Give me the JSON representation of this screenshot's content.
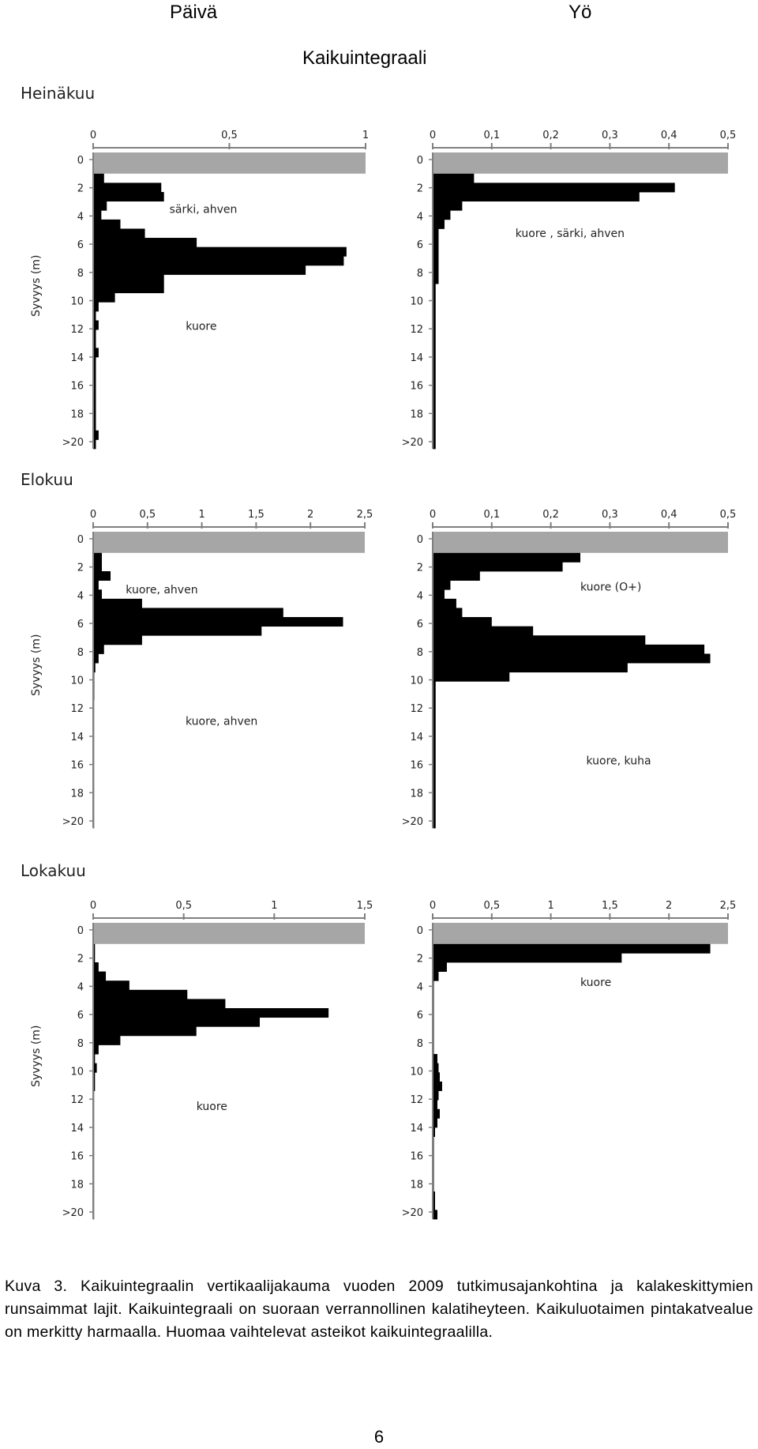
{
  "header": {
    "day": "Päivä",
    "night": "Yö",
    "title": "Kaikuintegraali"
  },
  "months": [
    "Heinäkuu",
    "Elokuu",
    "Lokakuu"
  ],
  "ylabel": "Syvyys (m)",
  "depth_labels": [
    "0",
    "2",
    "4",
    "6",
    "8",
    "10",
    "12",
    "14",
    "16",
    "18",
    ">20"
  ],
  "colors": {
    "surface": "#a6a6a6",
    "bars": "#000000",
    "axis": "#7f7f7f"
  },
  "chart_data": [
    {
      "type": "bar",
      "orientation": "horizontal",
      "month": "Heinäkuu",
      "column": "Päivä",
      "xlim": [
        0,
        1
      ],
      "ticks": [
        0,
        0.5,
        1
      ],
      "tick_labels": [
        "0",
        "0,5",
        "1"
      ],
      "annotations": [
        "särki, ahven",
        "kuore"
      ],
      "surface_depth": [
        0,
        1.5
      ],
      "depth_max": 21,
      "values": [
        0.04,
        0.25,
        0.26,
        0.05,
        0.03,
        0.1,
        0.19,
        0.38,
        0.93,
        0.92,
        0.78,
        0.26,
        0.26,
        0.08,
        0.02,
        0.01,
        0.02,
        0.01,
        0.01,
        0.02,
        0.01,
        0.01,
        0.01,
        0.01,
        0.01,
        0.01,
        0.01,
        0.01,
        0.02,
        0.01
      ]
    },
    {
      "type": "bar",
      "orientation": "horizontal",
      "month": "Heinäkuu",
      "column": "Yö",
      "xlim": [
        0,
        0.5
      ],
      "ticks": [
        0,
        0.1,
        0.2,
        0.3,
        0.4,
        0.5
      ],
      "tick_labels": [
        "0",
        "0,1",
        "0,2",
        "0,3",
        "0,4",
        "0,5"
      ],
      "annotations": [
        "kuore , särki, ahven"
      ],
      "surface_depth": [
        0,
        1.5
      ],
      "depth_max": 21,
      "values": [
        0.07,
        0.41,
        0.35,
        0.05,
        0.03,
        0.02,
        0.01,
        0.01,
        0.01,
        0.01,
        0.01,
        0.01,
        0.005,
        0.005,
        0.005,
        0.005,
        0.005,
        0.005,
        0.005,
        0.005,
        0.005,
        0.005,
        0.005,
        0.005,
        0.005,
        0.005,
        0.005,
        0.005,
        0.005,
        0.005
      ]
    },
    {
      "type": "bar",
      "orientation": "horizontal",
      "month": "Elokuu",
      "column": "Päivä",
      "xlim": [
        0,
        2.5
      ],
      "ticks": [
        0,
        0.5,
        1,
        1.5,
        2,
        2.5
      ],
      "tick_labels": [
        "0",
        "0,5",
        "1",
        "1,5",
        "2",
        "2,5"
      ],
      "annotations": [
        "kuore, ahven",
        "kuore, ahven"
      ],
      "surface_depth": [
        0,
        1.5
      ],
      "depth_max": 21,
      "values": [
        0.08,
        0.08,
        0.16,
        0.05,
        0.08,
        0.45,
        1.75,
        2.3,
        1.55,
        0.45,
        0.1,
        0.05,
        0.02,
        0.01,
        0.01,
        0.01,
        0.005,
        0.005,
        0.005,
        0.005,
        0.005,
        0.005,
        0.005,
        0.005,
        0.005,
        0.005,
        0.005,
        0.005,
        0.005,
        0.005
      ]
    },
    {
      "type": "bar",
      "orientation": "horizontal",
      "month": "Elokuu",
      "column": "Yö",
      "xlim": [
        0,
        0.5
      ],
      "ticks": [
        0,
        0.1,
        0.2,
        0.3,
        0.4,
        0.5
      ],
      "tick_labels": [
        "0",
        "0,1",
        "0,2",
        "0,3",
        "0,4",
        "0,5"
      ],
      "annotations": [
        "kuore (O+)",
        "kuore, kuha"
      ],
      "surface_depth": [
        0,
        1.5
      ],
      "depth_max": 21,
      "values": [
        0.25,
        0.22,
        0.08,
        0.03,
        0.02,
        0.04,
        0.05,
        0.1,
        0.17,
        0.36,
        0.46,
        0.47,
        0.33,
        0.13,
        0.005,
        0.005,
        0.005,
        0.005,
        0.005,
        0.005,
        0.005,
        0.005,
        0.005,
        0.005,
        0.005,
        0.005,
        0.005,
        0.005,
        0.005,
        0.005
      ]
    },
    {
      "type": "bar",
      "orientation": "horizontal",
      "month": "Lokakuu",
      "column": "Päivä",
      "xlim": [
        0,
        1.5
      ],
      "ticks": [
        0,
        0.5,
        1,
        1.5
      ],
      "tick_labels": [
        "0",
        "0,5",
        "1",
        "1,5"
      ],
      "annotations": [
        "kuore"
      ],
      "surface_depth": [
        0,
        1.5
      ],
      "depth_max": 21,
      "values": [
        0.01,
        0.01,
        0.03,
        0.07,
        0.2,
        0.52,
        0.73,
        1.3,
        0.92,
        0.57,
        0.15,
        0.03,
        0.01,
        0.02,
        0.01,
        0.01,
        0.005,
        0.005,
        0.005,
        0.005,
        0.005,
        0.005,
        0.005,
        0.005,
        0.005,
        0.005,
        0.005,
        0.005,
        0.005,
        0.005
      ]
    },
    {
      "type": "bar",
      "orientation": "horizontal",
      "month": "Lokakuu",
      "column": "Yö",
      "xlim": [
        0,
        2.5
      ],
      "ticks": [
        0,
        0.5,
        1,
        1.5,
        2,
        2.5
      ],
      "tick_labels": [
        "0",
        "0,5",
        "1",
        "1,5",
        "2",
        "2,5"
      ],
      "annotations": [
        "kuore"
      ],
      "surface_depth": [
        0,
        1.5
      ],
      "depth_max": 21,
      "values": [
        2.35,
        1.6,
        0.12,
        0.05,
        0.01,
        0.01,
        0.01,
        0.01,
        0.01,
        0.01,
        0.01,
        0.01,
        0.04,
        0.05,
        0.06,
        0.08,
        0.05,
        0.04,
        0.06,
        0.04,
        0.02,
        0.01,
        0.01,
        0.01,
        0.01,
        0.01,
        0.01,
        0.02,
        0.02,
        0.04
      ]
    }
  ],
  "caption": "Kuva 3. Kaikuintegraalin vertikaalijakauma vuoden 2009 tutkimusajankohtina ja kalakeskittymien runsaimmat lajit. Kaikuintegraali on suoraan verrannollinen kalatiheyteen. Kaikuluotaimen pintakatvealue on merkitty harmaalla. Huomaa vaihtelevat asteikot kaikuintegraalilla.",
  "page_number": "6"
}
